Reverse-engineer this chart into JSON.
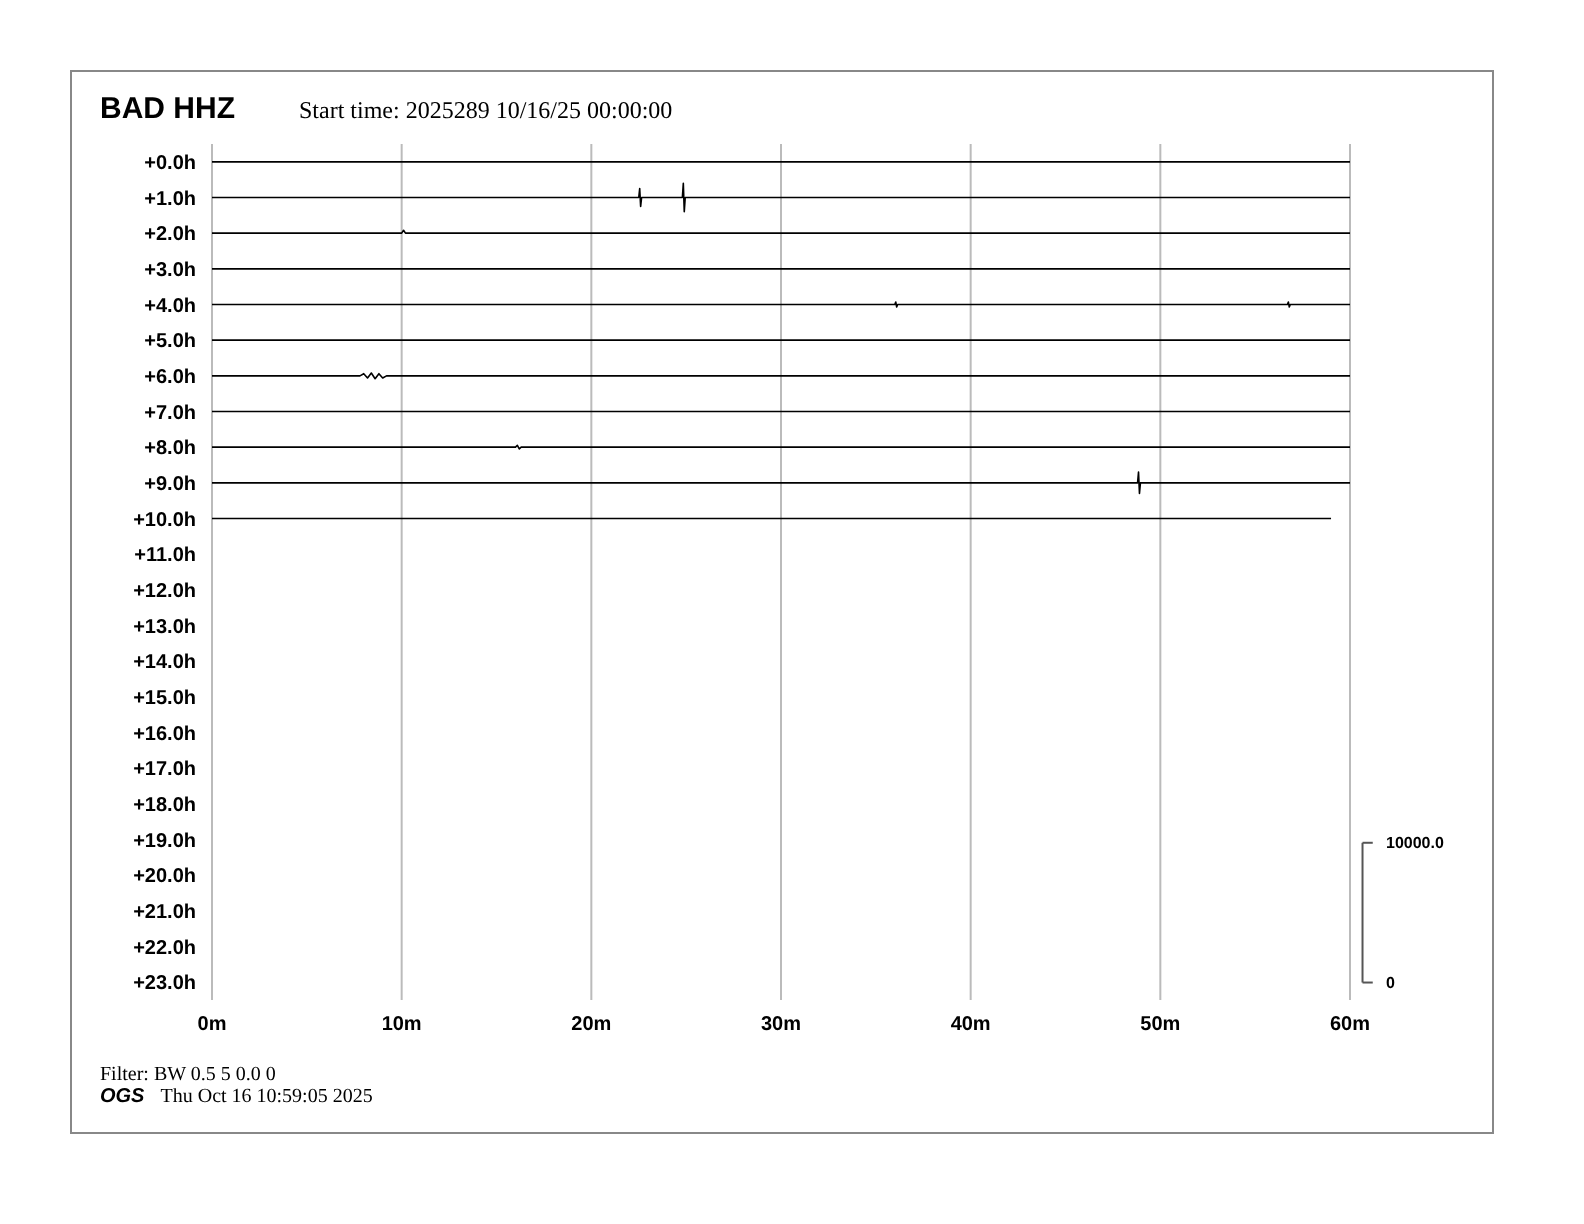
{
  "chart_data": {
    "type": "line",
    "title": "BAD HHZ",
    "subtitle": "Start time: 2025289 10/16/25 00:00:00",
    "annotations": [
      "Filter: BW 0.5 5 0.0 0",
      "OGS",
      "Thu Oct 16 10:59:05 2025"
    ],
    "xlim": [
      0,
      60
    ],
    "xticks": [
      {
        "value": 0,
        "label": "0m"
      },
      {
        "value": 10,
        "label": "10m"
      },
      {
        "value": 20,
        "label": "20m"
      },
      {
        "value": 30,
        "label": "30m"
      },
      {
        "value": 40,
        "label": "40m"
      },
      {
        "value": 50,
        "label": "50m"
      },
      {
        "value": 60,
        "label": "60m"
      }
    ],
    "ylim": [
      23.5,
      -0.5
    ],
    "yticks": [
      {
        "value": 0,
        "label": "+0.0h"
      },
      {
        "value": 1,
        "label": "+1.0h"
      },
      {
        "value": 2,
        "label": "+2.0h"
      },
      {
        "value": 3,
        "label": "+3.0h"
      },
      {
        "value": 4,
        "label": "+4.0h"
      },
      {
        "value": 5,
        "label": "+5.0h"
      },
      {
        "value": 6,
        "label": "+6.0h"
      },
      {
        "value": 7,
        "label": "+7.0h"
      },
      {
        "value": 8,
        "label": "+8.0h"
      },
      {
        "value": 9,
        "label": "+9.0h"
      },
      {
        "value": 10,
        "label": "+10.0h"
      },
      {
        "value": 11,
        "label": "+11.0h"
      },
      {
        "value": 12,
        "label": "+12.0h"
      },
      {
        "value": 13,
        "label": "+13.0h"
      },
      {
        "value": 14,
        "label": "+14.0h"
      },
      {
        "value": 15,
        "label": "+15.0h"
      },
      {
        "value": 16,
        "label": "+16.0h"
      },
      {
        "value": 17,
        "label": "+17.0h"
      },
      {
        "value": 18,
        "label": "+18.0h"
      },
      {
        "value": 19,
        "label": "+19.0h"
      },
      {
        "value": 20,
        "label": "+20.0h"
      },
      {
        "value": 21,
        "label": "+21.0h"
      },
      {
        "value": 22,
        "label": "+22.0h"
      },
      {
        "value": 23,
        "label": "+23.0h"
      }
    ],
    "y2lim": [
      -1250,
      60000
    ],
    "y2ticks": [
      0,
      {
        "value": 10000,
        "label": "10000.0"
      }
    ],
    "grid": "x",
    "marker": "none",
    "line_style": "solid",
    "series": [
      {
        "color": "#000000",
        "x": [
          0,
          60
        ],
        "values": [
          0,
          0
        ]
      },
      {
        "color": "#000000",
        "x": [
          0,
          22.5,
          22.55,
          22.6,
          22.65,
          24.8,
          24.85,
          24.9,
          24.95,
          60
        ],
        "values": [
          1,
          1,
          0.75,
          1.25,
          1,
          1,
          0.6,
          1.4,
          1,
          1
        ]
      },
      {
        "color": "#000000",
        "x": [
          0,
          10.0,
          10.1,
          10.2,
          60
        ],
        "values": [
          2,
          2,
          1.92,
          2,
          2
        ]
      },
      {
        "color": "#000000",
        "x": [
          0,
          60
        ],
        "values": [
          3,
          3
        ]
      },
      {
        "color": "#000000",
        "x": [
          0,
          36.0,
          36.05,
          36.1,
          36.15,
          56.7,
          56.75,
          56.8,
          56.85,
          60
        ],
        "values": [
          4,
          4,
          3.93,
          4.07,
          4,
          4,
          3.93,
          4.07,
          4,
          4
        ]
      },
      {
        "color": "#000000",
        "x": [
          0,
          60
        ],
        "values": [
          5,
          5
        ]
      },
      {
        "color": "#000000",
        "x": [
          0,
          7.8,
          8.0,
          8.2,
          8.4,
          8.6,
          8.8,
          9.0,
          9.2,
          9.4,
          60
        ],
        "values": [
          6,
          6,
          5.94,
          6.06,
          5.92,
          6.08,
          5.94,
          6.06,
          6,
          6,
          6
        ]
      },
      {
        "color": "#000000",
        "x": [
          0,
          60
        ],
        "values": [
          7,
          7
        ]
      },
      {
        "color": "#000000",
        "x": [
          0,
          16.0,
          16.1,
          16.2,
          16.3,
          60
        ],
        "values": [
          8,
          8,
          7.95,
          8.05,
          8,
          8
        ]
      },
      {
        "color": "#000000",
        "x": [
          0,
          48.8,
          48.85,
          48.9,
          48.95,
          60
        ],
        "values": [
          9,
          9,
          8.7,
          9.3,
          9,
          9
        ]
      },
      {
        "color": "#000000",
        "x": [
          0,
          59.0
        ],
        "values": [
          10,
          10
        ]
      }
    ]
  }
}
